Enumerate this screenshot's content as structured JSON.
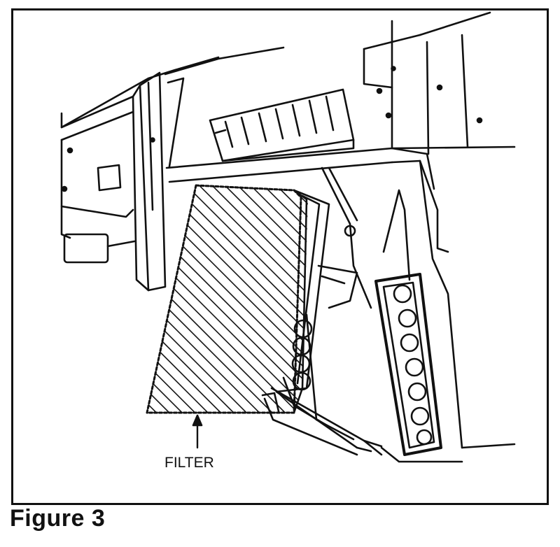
{
  "figure": {
    "caption": "Figure 3",
    "callouts": {
      "filter": "FILTER"
    }
  }
}
